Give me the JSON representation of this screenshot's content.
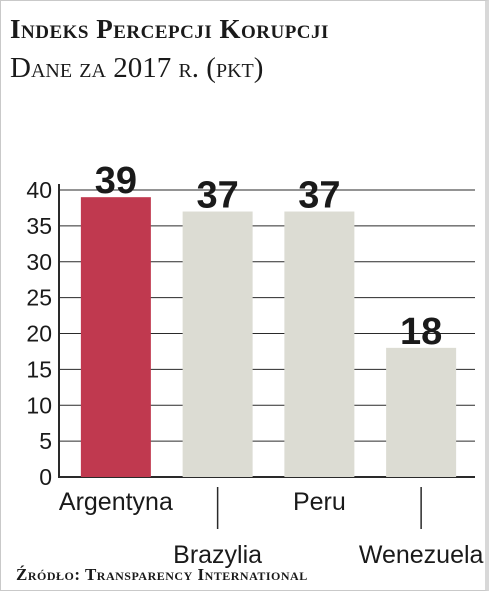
{
  "chart_data": {
    "type": "bar",
    "title": "Indeks Percepcji Korupcji",
    "subtitle": "Dane za 2017 r. (pkt)",
    "categories": [
      "Argentyna",
      "Brazylia",
      "Peru",
      "Wenezuela"
    ],
    "values": [
      39,
      37,
      37,
      18
    ],
    "value_labels": [
      "39",
      "37",
      "37",
      "18"
    ],
    "ylim": [
      0,
      40
    ],
    "yticks": [
      0,
      5,
      10,
      15,
      20,
      25,
      30,
      35,
      40
    ],
    "grid": true,
    "colors": {
      "highlight": "#c0394f",
      "bar": "#dcdcd3",
      "grid": "#2a2a2a"
    },
    "highlight_index": 0,
    "source": "Źródło: Transparency International"
  }
}
